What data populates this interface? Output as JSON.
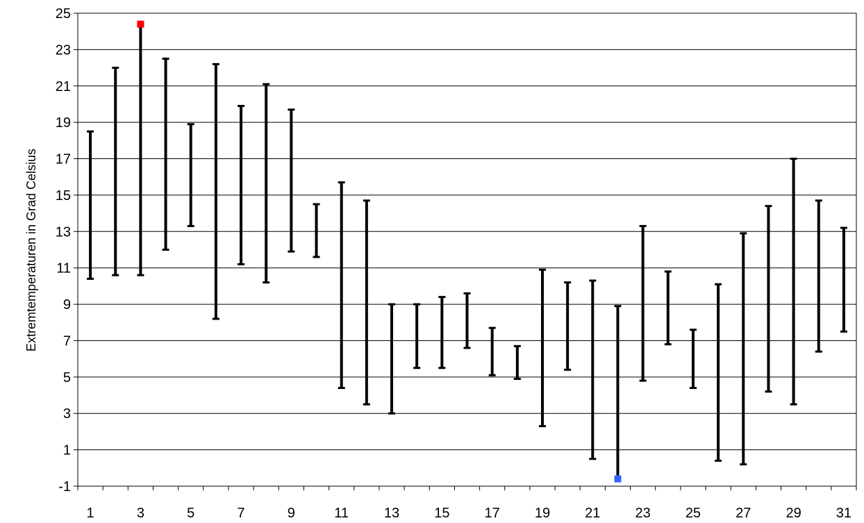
{
  "chart_data": {
    "type": "range-bar",
    "ylabel": "Extremtemperaturen in Grad Celsius",
    "xlabel": "",
    "ylim": [
      -1,
      25
    ],
    "y_ticks": [
      -1,
      1,
      3,
      5,
      7,
      9,
      11,
      13,
      15,
      17,
      19,
      21,
      23,
      25
    ],
    "x_tick_labels": [
      "1",
      "3",
      "5",
      "7",
      "9",
      "11",
      "13",
      "15",
      "17",
      "19",
      "21",
      "23",
      "25",
      "27",
      "29",
      "31"
    ],
    "grid": "horizontal",
    "days": [
      1,
      2,
      3,
      4,
      5,
      6,
      7,
      8,
      9,
      10,
      11,
      12,
      13,
      14,
      15,
      16,
      17,
      18,
      19,
      20,
      21,
      22,
      23,
      24,
      25,
      26,
      27,
      28,
      29,
      30,
      31
    ],
    "min": [
      10.4,
      10.6,
      10.6,
      12.0,
      13.3,
      8.2,
      11.2,
      10.2,
      11.9,
      11.6,
      4.4,
      3.5,
      3.0,
      5.5,
      5.5,
      6.6,
      5.1,
      4.9,
      2.3,
      5.4,
      0.5,
      -0.6,
      4.8,
      6.8,
      4.4,
      0.4,
      0.2,
      4.2,
      3.5,
      6.4,
      7.5
    ],
    "max": [
      18.5,
      22.0,
      24.4,
      22.5,
      18.9,
      22.2,
      19.9,
      21.1,
      19.7,
      14.5,
      15.7,
      14.7,
      9.0,
      9.0,
      9.4,
      9.6,
      7.7,
      6.7,
      10.9,
      10.2,
      10.3,
      8.9,
      13.3,
      10.8,
      7.6,
      10.1,
      12.9,
      14.4,
      17.0,
      14.7,
      13.2
    ],
    "highlights": [
      {
        "kind": "max",
        "day": 3,
        "value": 24.4,
        "color": "#ff0000"
      },
      {
        "kind": "min",
        "day": 22,
        "value": -0.6,
        "color": "#3366ff"
      }
    ],
    "colors": {
      "bar": "#000000",
      "grid": "#000000"
    }
  }
}
